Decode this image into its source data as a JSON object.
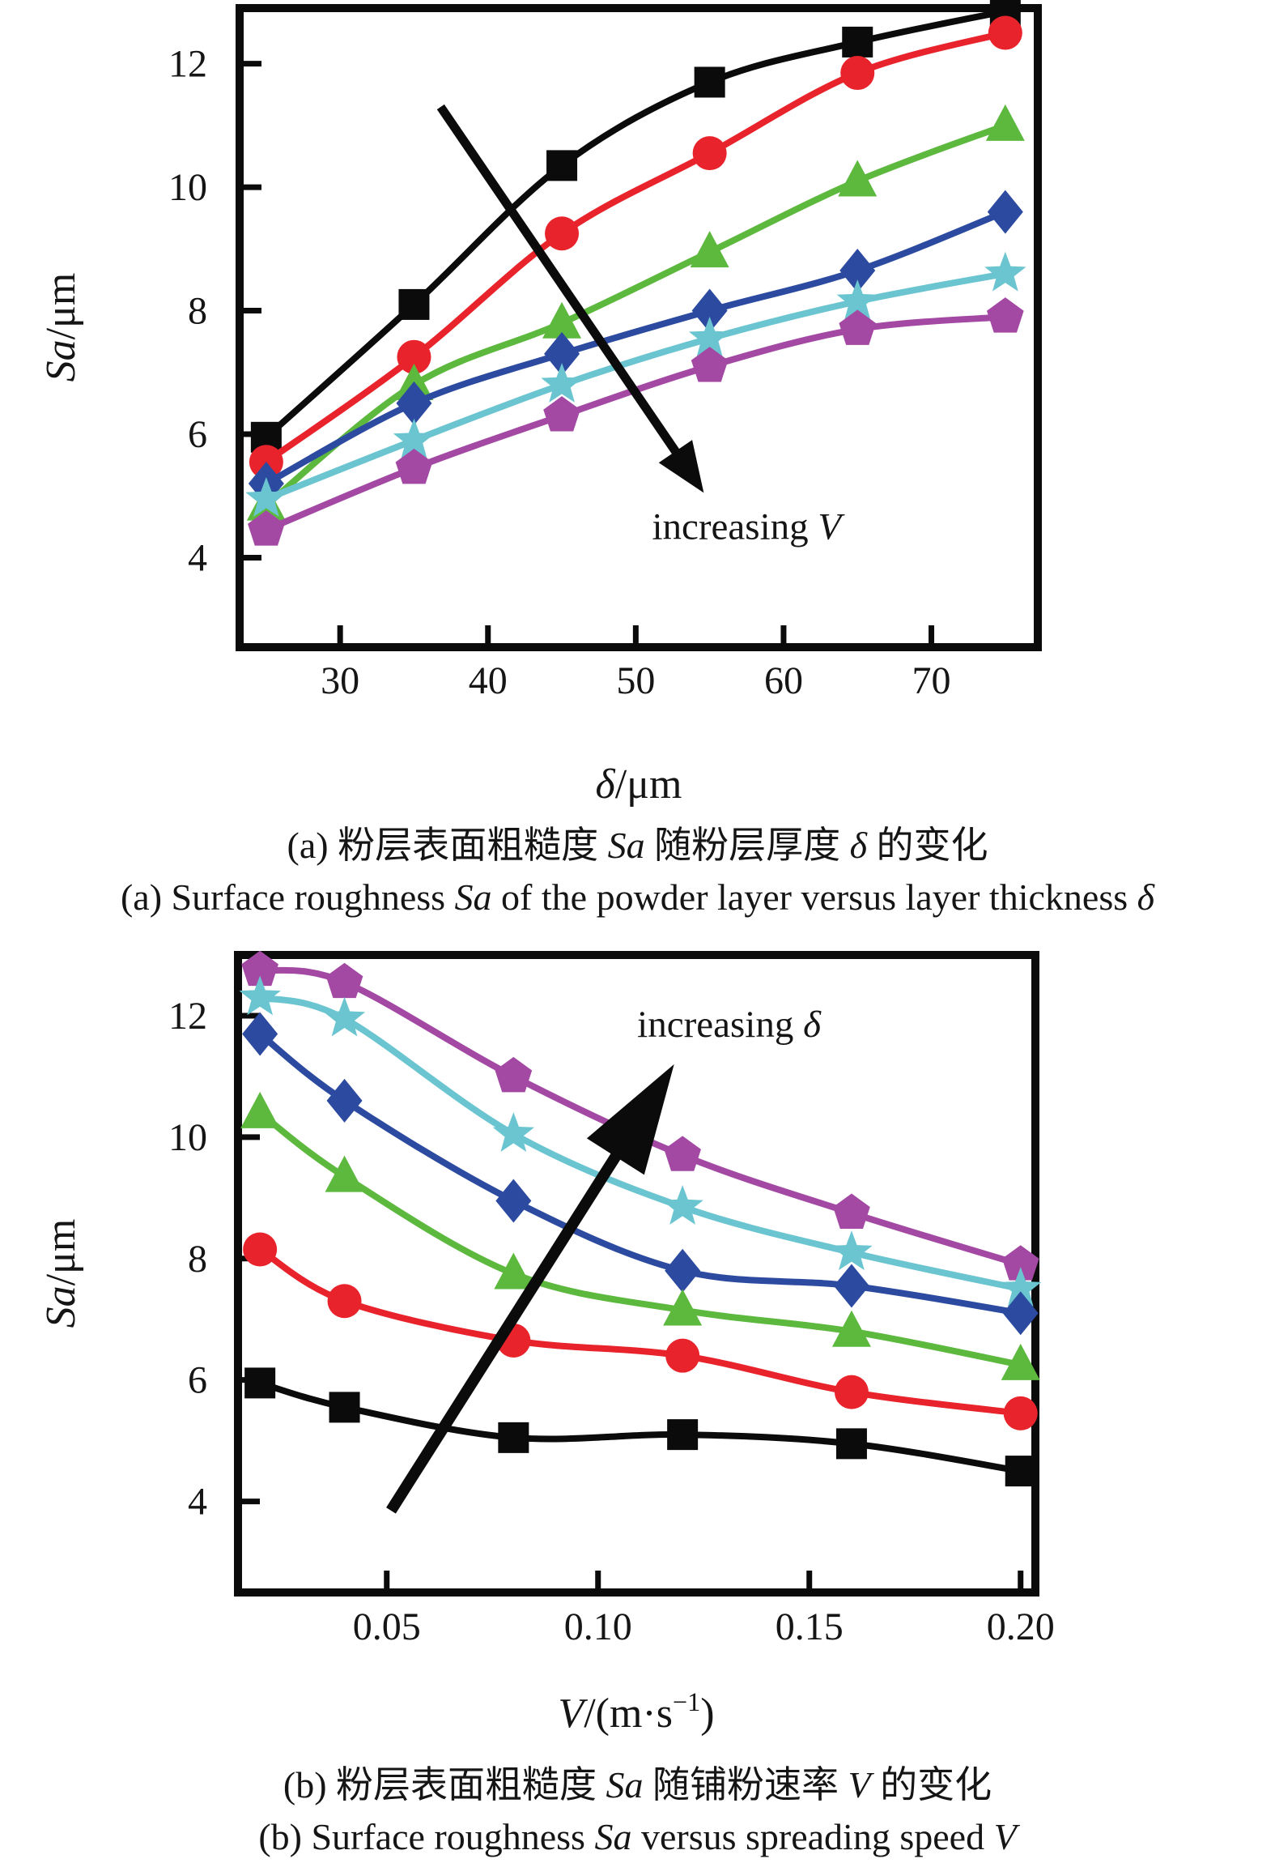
{
  "page": {
    "background": "#ffffff",
    "text_color": "#151515"
  },
  "captions": {
    "a_zh": [
      {
        "t": "(a) 粉层表面粗糙度 "
      },
      {
        "t": "Sa",
        "i": true
      },
      {
        "t": " 随粉层厚度 "
      },
      {
        "t": "δ",
        "i": true
      },
      {
        "t": " 的变化"
      }
    ],
    "a_en": [
      {
        "t": "(a) Surface roughness "
      },
      {
        "t": "Sa",
        "i": true
      },
      {
        "t": " of the powder layer versus layer thickness "
      },
      {
        "t": "δ",
        "i": true
      }
    ],
    "b_zh": [
      {
        "t": "(b) 粉层表面粗糙度 "
      },
      {
        "t": "Sa",
        "i": true
      },
      {
        "t": " 随铺粉速率 "
      },
      {
        "t": "V",
        "i": true
      },
      {
        "t": " 的变化"
      }
    ],
    "b_en": [
      {
        "t": "(b) Surface roughness "
      },
      {
        "t": "Sa",
        "i": true
      },
      {
        "t": " versus spreading speed "
      },
      {
        "t": "V",
        "i": true
      }
    ]
  },
  "chart_data": [
    {
      "id": "a",
      "type": "line",
      "xlabel": "δ/μm",
      "ylabel": "Sa/μm",
      "xlabel_segments": [
        {
          "t": "δ",
          "i": true
        },
        {
          "t": "/μm"
        }
      ],
      "ylabel_segments": [
        {
          "t": "Sa",
          "i": true
        },
        {
          "t": "/μm"
        }
      ],
      "x": [
        25,
        35,
        45,
        55,
        65,
        75
      ],
      "x_ticks": [
        30,
        40,
        50,
        60,
        70
      ],
      "x_tick_labels": [
        "30",
        "40",
        "50",
        "60",
        "70"
      ],
      "y_ticks": [
        12,
        10,
        8,
        6,
        4
      ],
      "y_tick_labels": [
        "12",
        "10",
        "8",
        "6",
        "4"
      ],
      "xlim": [
        23.2,
        77.2
      ],
      "ylim": [
        2.55,
        12.9
      ],
      "grid": false,
      "legend": false,
      "series": [
        {
          "name": "black-squares",
          "marker": "square",
          "color": "#0b0b0b",
          "values": [
            5.95,
            8.1,
            10.35,
            11.7,
            12.35,
            12.85
          ]
        },
        {
          "name": "red-circles",
          "marker": "circle",
          "color": "#e8232b",
          "values": [
            5.55,
            7.25,
            9.25,
            10.55,
            11.85,
            12.5
          ]
        },
        {
          "name": "green-triangles",
          "marker": "triangle",
          "color": "#5cb93e",
          "values": [
            4.85,
            6.8,
            7.8,
            8.95,
            10.1,
            11.0
          ]
        },
        {
          "name": "blue-diamonds",
          "marker": "diamond",
          "color": "#2c4ba0",
          "values": [
            5.2,
            6.5,
            7.3,
            8.0,
            8.65,
            9.6
          ]
        },
        {
          "name": "cyan-stars",
          "marker": "star",
          "color": "#6bc5d0",
          "values": [
            4.95,
            5.9,
            6.8,
            7.55,
            8.15,
            8.6
          ]
        },
        {
          "name": "purple-pentagons",
          "marker": "pentagon",
          "color": "#a349a3",
          "values": [
            4.45,
            5.45,
            6.3,
            7.1,
            7.7,
            7.9
          ]
        }
      ],
      "annotation": {
        "text": "increasing V",
        "segments": [
          {
            "t": "increasing "
          },
          {
            "t": "V",
            "i": true
          }
        ],
        "x": 57.5,
        "y": 4.3
      },
      "arrow": {
        "x1": 36.8,
        "y1": 11.3,
        "x2": 54.6,
        "y2": 5.05
      }
    },
    {
      "id": "b",
      "type": "line",
      "xlabel": "V/(m·s−1)",
      "ylabel": "Sa/μm",
      "xlabel_segments": [
        {
          "t": "V",
          "i": true
        },
        {
          "t": "/(m·s"
        },
        {
          "t": "−1",
          "sup": true
        },
        {
          "t": ")"
        }
      ],
      "ylabel_segments": [
        {
          "t": "Sa",
          "i": true
        },
        {
          "t": "/μm"
        }
      ],
      "x": [
        0.02,
        0.04,
        0.08,
        0.12,
        0.16,
        0.2
      ],
      "x_ticks": [
        0.05,
        0.1,
        0.15,
        0.2
      ],
      "x_tick_labels": [
        "0.05",
        "0.10",
        "0.15",
        "0.20"
      ],
      "y_ticks": [
        12,
        10,
        8,
        6,
        4
      ],
      "y_tick_labels": [
        "12",
        "10",
        "8",
        "6",
        "4"
      ],
      "xlim": [
        0.0148,
        0.2035
      ],
      "ylim": [
        2.5,
        13.0
      ],
      "grid": false,
      "legend": false,
      "series": [
        {
          "name": "purple-pentagons",
          "marker": "pentagon",
          "color": "#a349a3",
          "values": [
            12.75,
            12.55,
            11.0,
            9.7,
            8.75,
            7.9
          ]
        },
        {
          "name": "cyan-stars",
          "marker": "star",
          "color": "#6bc5d0",
          "values": [
            12.3,
            11.95,
            10.05,
            8.85,
            8.1,
            7.5
          ]
        },
        {
          "name": "blue-diamonds",
          "marker": "diamond",
          "color": "#2c4ba0",
          "values": [
            11.7,
            10.6,
            8.95,
            7.8,
            7.55,
            7.1
          ]
        },
        {
          "name": "green-triangles",
          "marker": "triangle",
          "color": "#5cb93e",
          "values": [
            10.4,
            9.35,
            7.75,
            7.15,
            6.8,
            6.25
          ]
        },
        {
          "name": "red-circles",
          "marker": "circle",
          "color": "#e8232b",
          "values": [
            8.15,
            7.3,
            6.65,
            6.4,
            5.8,
            5.45
          ]
        },
        {
          "name": "black-squares",
          "marker": "square",
          "color": "#0b0b0b",
          "values": [
            5.95,
            5.55,
            5.05,
            5.1,
            4.95,
            4.5
          ]
        }
      ],
      "annotation": {
        "text": "increasing δ",
        "segments": [
          {
            "t": "increasing "
          },
          {
            "t": "δ",
            "i": true
          }
        ],
        "x": 0.131,
        "y": 11.65
      },
      "arrow": {
        "x1": 0.051,
        "y1": 3.85,
        "x2": 0.118,
        "y2": 11.2
      }
    }
  ]
}
